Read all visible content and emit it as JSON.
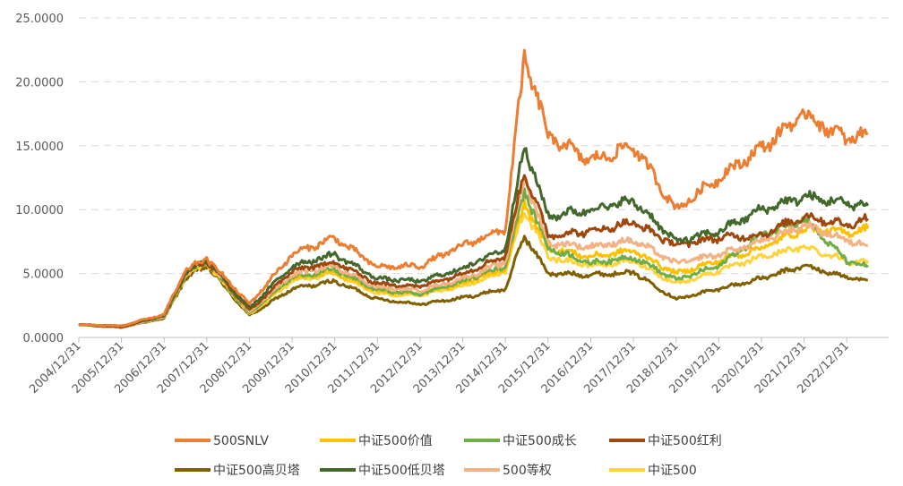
{
  "chart_data": {
    "type": "line",
    "title": "",
    "xlabel": "",
    "ylabel": "",
    "ylim": [
      0,
      25
    ],
    "y_ticks": [
      "0.0000",
      "5.0000",
      "10.0000",
      "15.0000",
      "20.0000",
      "25.0000"
    ],
    "x_ticks": [
      "2004/12/31",
      "2005/12/31",
      "2006/12/31",
      "2007/12/31",
      "2008/12/31",
      "2009/12/31",
      "2010/12/31",
      "2011/12/31",
      "2012/12/31",
      "2013/12/31",
      "2014/12/31",
      "2015/12/31",
      "2016/12/31",
      "2017/12/31",
      "2018/12/31",
      "2019/12/31",
      "2020/12/31",
      "2021/12/31",
      "2022/12/31"
    ],
    "grid": "horizontal dashed",
    "legend_position": "bottom",
    "x": [
      "2004/12/31",
      "2005/12/31",
      "2006/12/31",
      "2007/6/30",
      "2007/12/31",
      "2008/12/31",
      "2009/12/31",
      "2010/12/31",
      "2011/12/31",
      "2012/12/31",
      "2013/12/31",
      "2014/12/31",
      "2015/6/12",
      "2015/12/31",
      "2016/12/31",
      "2017/12/31",
      "2018/12/31",
      "2019/12/31",
      "2020/12/31",
      "2021/12/31",
      "2022/12/31",
      "2023/6/30"
    ],
    "series": [
      {
        "name": "500SNLV",
        "color": "#ED7D31",
        "values": [
          1.0,
          0.9,
          1.8,
          5.2,
          6.2,
          2.6,
          6.5,
          7.8,
          5.5,
          5.6,
          7.2,
          8.5,
          22.0,
          15.8,
          13.8,
          15.0,
          10.0,
          12.5,
          14.8,
          17.5,
          15.5,
          16.0
        ]
      },
      {
        "name": "中证500价值",
        "color": "#FFC000",
        "values": [
          1.0,
          0.8,
          1.6,
          4.8,
          5.9,
          1.9,
          4.6,
          5.1,
          3.6,
          3.4,
          4.2,
          5.4,
          10.5,
          7.0,
          6.3,
          6.8,
          5.0,
          6.0,
          7.0,
          8.5,
          8.2,
          8.5
        ]
      },
      {
        "name": "中证500成长",
        "color": "#70AD47",
        "values": [
          1.0,
          0.8,
          1.6,
          4.9,
          5.9,
          1.9,
          4.7,
          5.3,
          3.7,
          3.4,
          4.4,
          5.6,
          11.5,
          7.0,
          5.8,
          6.3,
          4.5,
          5.6,
          8.0,
          9.3,
          6.0,
          5.5
        ]
      },
      {
        "name": "中证500红利",
        "color": "#9E480E",
        "values": [
          1.0,
          0.8,
          1.7,
          5.0,
          6.0,
          2.1,
          5.2,
          5.9,
          4.2,
          4.0,
          5.0,
          6.4,
          13.0,
          8.0,
          8.3,
          9.0,
          7.2,
          7.8,
          8.0,
          9.5,
          8.8,
          9.3
        ]
      },
      {
        "name": "中证500高贝塔",
        "color": "#806000",
        "values": [
          1.0,
          0.8,
          1.5,
          4.6,
          5.6,
          1.7,
          3.8,
          4.4,
          3.0,
          2.6,
          3.1,
          3.8,
          8.0,
          5.0,
          4.9,
          5.1,
          3.0,
          3.8,
          4.6,
          5.6,
          4.7,
          4.5
        ]
      },
      {
        "name": "中证500低贝塔",
        "color": "#43682B",
        "values": [
          1.0,
          0.9,
          1.7,
          5.0,
          6.1,
          2.3,
          5.6,
          6.5,
          4.6,
          4.4,
          5.4,
          7.0,
          15.0,
          9.5,
          10.0,
          10.7,
          7.5,
          8.3,
          10.0,
          11.0,
          10.5,
          10.3
        ]
      },
      {
        "name": "500等权",
        "color": "#F4B183",
        "values": [
          1.0,
          0.8,
          1.6,
          4.9,
          6.0,
          2.0,
          4.9,
          5.6,
          3.9,
          3.7,
          4.6,
          5.9,
          12.5,
          7.4,
          7.1,
          7.6,
          5.8,
          6.5,
          7.5,
          8.8,
          7.6,
          7.2
        ]
      },
      {
        "name": "中证500",
        "color": "#FFD33D",
        "values": [
          1.0,
          0.8,
          1.6,
          4.8,
          5.8,
          1.8,
          4.4,
          5.0,
          3.4,
          3.3,
          4.0,
          5.2,
          10.0,
          6.3,
          5.6,
          6.0,
          4.2,
          5.2,
          6.3,
          7.1,
          6.0,
          5.8
        ]
      }
    ]
  }
}
